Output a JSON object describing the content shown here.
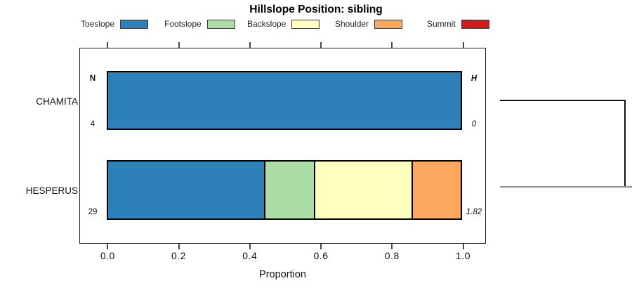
{
  "title": "Hillslope Position: sibling",
  "legend": {
    "items": [
      {
        "label": "Toeslope",
        "color": "#2E81B8"
      },
      {
        "label": "Footslope",
        "color": "#ABDDA4"
      },
      {
        "label": "Backslope",
        "color": "#FFFFBF"
      },
      {
        "label": "Shoulder",
        "color": "#FBA85E"
      },
      {
        "label": "Summit",
        "color": "#D7191C"
      }
    ]
  },
  "columns": {
    "n_header": "N",
    "h_header": "H"
  },
  "rows": [
    {
      "label": "CHAMITA",
      "n": "4",
      "h": "0"
    },
    {
      "label": "HESPERUS",
      "n": "29",
      "h": "1.82"
    }
  ],
  "axis": {
    "ticks": [
      "0.0",
      "0.2",
      "0.4",
      "0.6",
      "0.8",
      "1.0"
    ],
    "label": "Proportion"
  },
  "chart_data": {
    "type": "bar",
    "orientation": "horizontal-stacked",
    "title": "Hillslope Position: sibling",
    "categories": [
      "CHAMITA",
      "HESPERUS"
    ],
    "series": [
      {
        "name": "Toeslope",
        "color": "#2E81B8",
        "values": [
          1.0,
          0.448
        ]
      },
      {
        "name": "Footslope",
        "color": "#ABDDA4",
        "values": [
          0,
          0.138
        ]
      },
      {
        "name": "Backslope",
        "color": "#FFFFBF",
        "values": [
          0,
          0.276
        ]
      },
      {
        "name": "Shoulder",
        "color": "#FBA85E",
        "values": [
          0,
          0.138
        ]
      },
      {
        "name": "Summit",
        "color": "#D7191C",
        "values": [
          0,
          0
        ]
      }
    ],
    "sample_sizes": [
      4,
      29
    ],
    "shannon_entropy": [
      0,
      1.82
    ],
    "xlabel": "Proportion",
    "xlim": [
      0,
      1
    ],
    "x_ticks": [
      0.0,
      0.2,
      0.4,
      0.6,
      0.8,
      1.0
    ],
    "legend_position": "top",
    "grid": false,
    "annotation": "dendrogram bracket joining CHAMITA and HESPERUS rows at right edge"
  }
}
